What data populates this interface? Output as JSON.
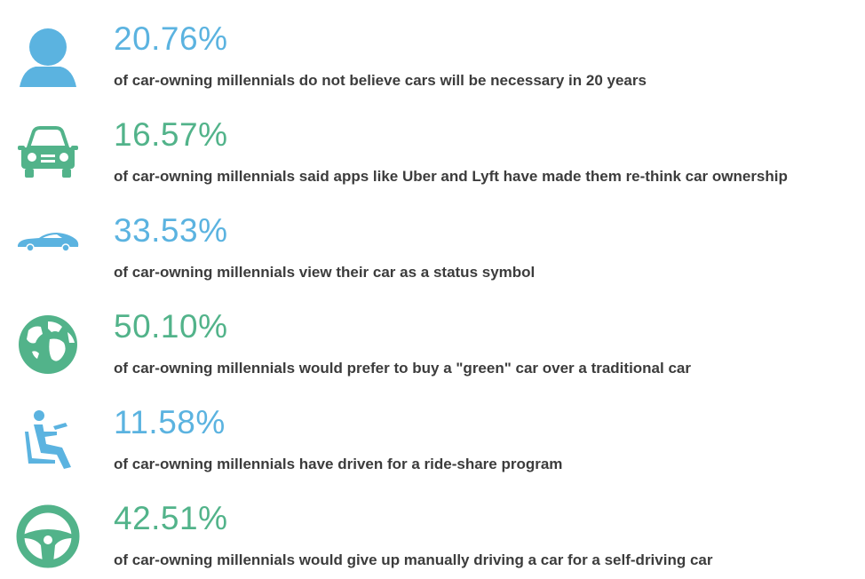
{
  "colors": {
    "blue": "#5bb3e0",
    "green": "#52b38a",
    "text": "#3c3c3c"
  },
  "stats": [
    {
      "icon": "person-head-icon",
      "color": "#5bb3e0",
      "percent": "20.76%",
      "caption": "of car-owning millennials do not believe cars will be necessary in 20 years"
    },
    {
      "icon": "car-front-icon",
      "color": "#52b38a",
      "percent": "16.57%",
      "caption": "of car-owning millennials said apps like Uber and Lyft have made them re-think car ownership"
    },
    {
      "icon": "sports-car-icon",
      "color": "#5bb3e0",
      "percent": "33.53%",
      "caption": "of car-owning millennials view their car as a status symbol"
    },
    {
      "icon": "globe-icon",
      "color": "#52b38a",
      "percent": "50.10%",
      "caption": "of car-owning millennials would prefer to buy a \"green\" car over a traditional car"
    },
    {
      "icon": "seated-driver-icon",
      "color": "#5bb3e0",
      "percent": "11.58%",
      "caption": "of car-owning millennials have driven for a ride-share program"
    },
    {
      "icon": "steering-wheel-icon",
      "color": "#52b38a",
      "percent": "42.51%",
      "caption": "of car-owning millennials would give up manually driving a car for a self-driving car"
    }
  ]
}
